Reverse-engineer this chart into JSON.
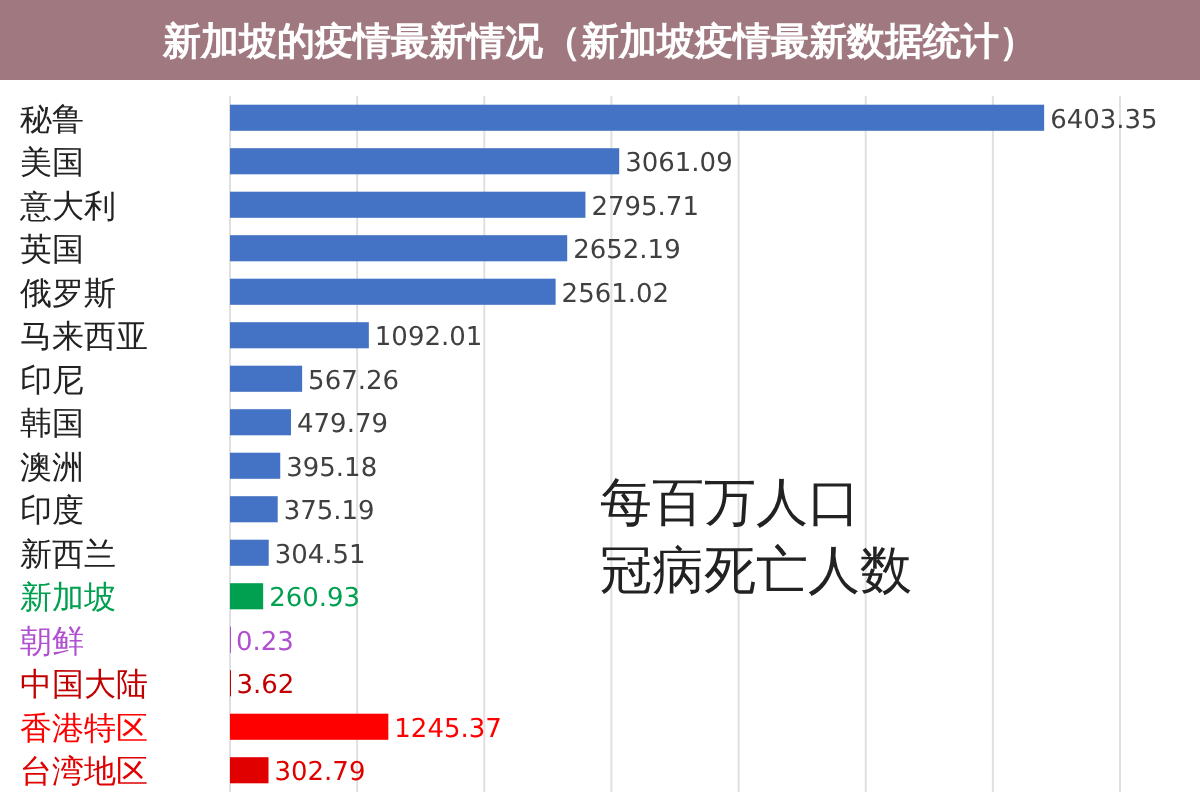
{
  "chart_data": {
    "type": "bar",
    "orientation": "horizontal",
    "title": "新加坡的疫情最新情况（新加坡疫情最新数据统计）",
    "categories": [
      "秘鲁",
      "美国",
      "意大利",
      "英国",
      "俄罗斯",
      "马来西亚",
      "印尼",
      "韩国",
      "澳洲",
      "印度",
      "新西兰",
      "新加坡",
      "朝鲜",
      "中国大陆",
      "香港特区",
      "台湾地区"
    ],
    "values": [
      6403.35,
      3061.09,
      2795.71,
      2652.19,
      2561.02,
      1092.01,
      567.26,
      479.79,
      395.18,
      375.19,
      304.51,
      260.93,
      0.23,
      3.62,
      1245.37,
      302.79
    ],
    "colors": [
      "#4472c4",
      "#4472c4",
      "#4472c4",
      "#4472c4",
      "#4472c4",
      "#4472c4",
      "#4472c4",
      "#4472c4",
      "#4472c4",
      "#4472c4",
      "#4472c4",
      "#00a050",
      "#b050d0",
      "#c00000",
      "#ff0000",
      "#e00000"
    ],
    "data_labels": true,
    "xlim": [
      0,
      7000
    ],
    "xticks": [
      {
        "value": 0,
        "label": null
      },
      {
        "value": 1000,
        "label": null
      },
      {
        "value": 2000,
        "label": null
      },
      {
        "value": 3000,
        "label": null
      },
      {
        "value": 4000,
        "label": null
      },
      {
        "value": 5000,
        "label": null
      },
      {
        "value": 6000,
        "label": null
      },
      {
        "value": 7000,
        "label": null
      }
    ],
    "tick_labels": "y",
    "grid": "x",
    "annotations": [
      "每百万人口",
      "冠病死亡人数"
    ]
  }
}
